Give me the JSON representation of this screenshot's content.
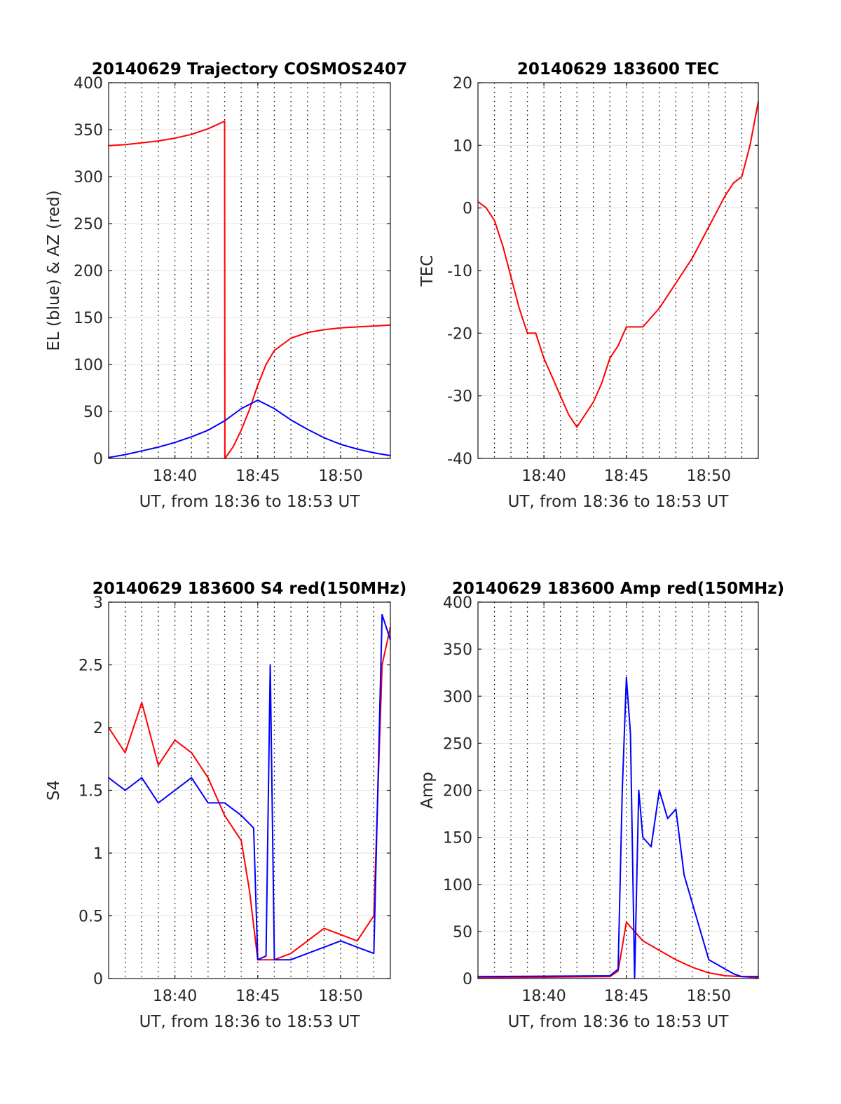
{
  "chart_data": [
    {
      "type": "line",
      "title": "20140629 Trajectory COSMOS2407",
      "xlabel": "UT, from 18:36 to 18:53 UT",
      "ylabel": "EL (blue) & AZ (red)",
      "xlim": [
        "18:36",
        "18:53"
      ],
      "ylim": [
        0,
        400
      ],
      "xticks": [
        "18:40",
        "18:45",
        "18:50"
      ],
      "yticks": [
        "0",
        "50",
        "100",
        "150",
        "200",
        "250",
        "300",
        "350",
        "400"
      ],
      "grid": true,
      "series": [
        {
          "color": "#ff0000",
          "x": [
            "18:36",
            "18:37",
            "18:38",
            "18:39",
            "18:40",
            "18:41",
            "18:42",
            "18:42:30",
            "18:43",
            "18:43:01",
            "18:43:30",
            "18:44",
            "18:44:30",
            "18:45",
            "18:45:30",
            "18:46",
            "18:47",
            "18:48",
            "18:49",
            "18:50",
            "18:51",
            "18:52",
            "18:53"
          ],
          "values": [
            333,
            334,
            336,
            338,
            341,
            345,
            351,
            355,
            359,
            0,
            12,
            30,
            52,
            78,
            100,
            115,
            128,
            134,
            137,
            139,
            140,
            141,
            142
          ]
        },
        {
          "color": "#0000ff",
          "x": [
            "18:36",
            "18:37",
            "18:38",
            "18:39",
            "18:40",
            "18:41",
            "18:42",
            "18:43",
            "18:44",
            "18:45",
            "18:46",
            "18:47",
            "18:48",
            "18:49",
            "18:50",
            "18:51",
            "18:52",
            "18:53"
          ],
          "values": [
            1,
            4,
            8,
            12,
            17,
            23,
            30,
            40,
            53,
            62,
            53,
            41,
            31,
            22,
            15,
            10,
            6,
            3
          ]
        }
      ]
    },
    {
      "type": "line",
      "title": "20140629 183600 TEC",
      "xlabel": "UT, from 18:36 to 18:53 UT",
      "ylabel": "TEC",
      "xlim": [
        "18:36",
        "18:53"
      ],
      "ylim": [
        -40,
        20
      ],
      "xticks": [
        "18:40",
        "18:45",
        "18:50"
      ],
      "yticks": [
        "-40",
        "-30",
        "-20",
        "-10",
        "0",
        "10",
        "20"
      ],
      "grid": true,
      "series": [
        {
          "color": "#ff0000",
          "x": [
            "18:36",
            "18:36:30",
            "18:37",
            "18:37:30",
            "18:38",
            "18:38:30",
            "18:39",
            "18:39:30",
            "18:40",
            "18:40:30",
            "18:41",
            "18:41:30",
            "18:42",
            "18:42:30",
            "18:43",
            "18:43:30",
            "18:44",
            "18:44:30",
            "18:45",
            "18:45:30",
            "18:46",
            "18:47",
            "18:48",
            "18:49",
            "18:50",
            "18:51",
            "18:51:30",
            "18:52",
            "18:52:30",
            "18:53"
          ],
          "values": [
            1,
            0,
            -2,
            -6,
            -11,
            -16,
            -20,
            -20,
            -24,
            -27,
            -30,
            -33,
            -35,
            -33,
            -31,
            -28,
            -24,
            -22,
            -19,
            -19,
            -19,
            -16,
            -12,
            -8,
            -3,
            2,
            4,
            5,
            10,
            17
          ]
        }
      ]
    },
    {
      "type": "line",
      "title": "20140629 183600 S4 red(150MHz)",
      "xlabel": "UT, from 18:36 to 18:53 UT",
      "ylabel": "S4",
      "xlim": [
        "18:36",
        "18:53"
      ],
      "ylim": [
        0,
        3
      ],
      "xticks": [
        "18:40",
        "18:45",
        "18:50"
      ],
      "yticks": [
        "0",
        "0.5",
        "1",
        "1.5",
        "2",
        "2.5",
        "3"
      ],
      "grid": true,
      "series": [
        {
          "color": "#ff0000",
          "x": [
            "18:36",
            "18:37",
            "18:38",
            "18:39",
            "18:40",
            "18:41",
            "18:42",
            "18:43",
            "18:44",
            "18:44:30",
            "18:45",
            "18:45:30",
            "18:46",
            "18:47",
            "18:48",
            "18:49",
            "18:50",
            "18:51",
            "18:52",
            "18:52:30",
            "18:53"
          ],
          "values": [
            2.0,
            1.8,
            2.2,
            1.7,
            1.9,
            1.8,
            1.6,
            1.3,
            1.1,
            0.7,
            0.15,
            0.15,
            0.15,
            0.2,
            0.3,
            0.4,
            0.35,
            0.3,
            0.5,
            2.5,
            2.8
          ]
        },
        {
          "color": "#0000ff",
          "x": [
            "18:36",
            "18:37",
            "18:38",
            "18:39",
            "18:40",
            "18:41",
            "18:42",
            "18:43",
            "18:44",
            "18:44:45",
            "18:45",
            "18:45:30",
            "18:45:45",
            "18:46",
            "18:47",
            "18:48",
            "18:49",
            "18:50",
            "18:51",
            "18:52",
            "18:52:30",
            "18:53"
          ],
          "values": [
            1.6,
            1.5,
            1.6,
            1.4,
            1.5,
            1.6,
            1.4,
            1.4,
            1.3,
            1.2,
            0.15,
            0.18,
            2.5,
            0.15,
            0.15,
            0.2,
            0.25,
            0.3,
            0.25,
            0.2,
            2.9,
            2.7
          ]
        }
      ]
    },
    {
      "type": "line",
      "title": "20140629 183600 Amp red(150MHz)",
      "xlabel": "UT, from 18:36 to 18:53 UT",
      "ylabel": "Amp",
      "xlim": [
        "18:36",
        "18:53"
      ],
      "ylim": [
        0,
        400
      ],
      "xticks": [
        "18:40",
        "18:45",
        "18:50"
      ],
      "yticks": [
        "0",
        "50",
        "100",
        "150",
        "200",
        "250",
        "300",
        "350",
        "400"
      ],
      "grid": true,
      "series": [
        {
          "color": "#ff0000",
          "x": [
            "18:36",
            "18:44",
            "18:44:30",
            "18:45",
            "18:45:30",
            "18:46",
            "18:47",
            "18:48",
            "18:49",
            "18:50",
            "18:51",
            "18:52",
            "18:53"
          ],
          "values": [
            1,
            2,
            8,
            60,
            50,
            40,
            30,
            20,
            12,
            6,
            3,
            2,
            1
          ]
        },
        {
          "color": "#0000ff",
          "x": [
            "18:36",
            "18:44",
            "18:44:30",
            "18:44:45",
            "18:45",
            "18:45:15",
            "18:45:30",
            "18:45:45",
            "18:46",
            "18:46:30",
            "18:47",
            "18:47:30",
            "18:48",
            "18:48:30",
            "18:49",
            "18:49:30",
            "18:50",
            "18:50:30",
            "18:51",
            "18:51:30",
            "18:52",
            "18:53"
          ],
          "values": [
            2,
            3,
            10,
            200,
            320,
            260,
            0,
            200,
            150,
            140,
            200,
            170,
            180,
            110,
            80,
            50,
            20,
            15,
            10,
            5,
            2,
            2
          ]
        }
      ]
    }
  ]
}
